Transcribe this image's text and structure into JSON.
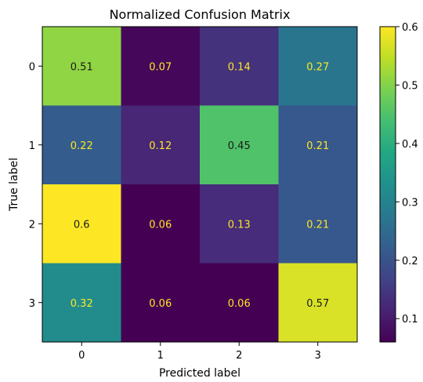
{
  "chart_data": {
    "type": "heatmap",
    "title": "Normalized Confusion Matrix",
    "xlabel": "Predicted label",
    "ylabel": "True label",
    "x_categories": [
      "0",
      "1",
      "2",
      "3"
    ],
    "y_categories": [
      "0",
      "1",
      "2",
      "3"
    ],
    "values": [
      [
        0.51,
        0.07,
        0.14,
        0.27
      ],
      [
        0.22,
        0.12,
        0.45,
        0.21
      ],
      [
        0.6,
        0.06,
        0.13,
        0.21
      ],
      [
        0.32,
        0.06,
        0.06,
        0.57
      ]
    ],
    "colormap": "viridis",
    "colorbar": {
      "range": [
        0.06,
        0.6
      ],
      "ticks": [
        "0.1",
        "0.2",
        "0.3",
        "0.4",
        "0.5",
        "0.6"
      ]
    },
    "text_colors": {
      "light": "#fde725",
      "dark": "#1a1a1a"
    }
  }
}
